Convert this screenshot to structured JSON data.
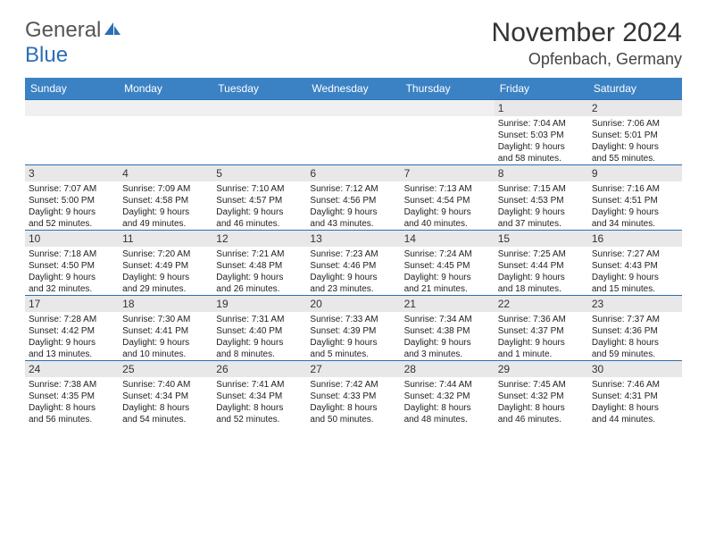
{
  "colors": {
    "header_bg": "#3b82c4",
    "header_text": "#ffffff",
    "cell_border": "#2b6fb5",
    "daynum_bg": "#e8e8e8",
    "text": "#222222",
    "title": "#333333",
    "logo_gray": "#555555",
    "logo_blue": "#2b6fb5"
  },
  "fonts": {
    "title_size": 30,
    "location_size": 18,
    "header_size": 12,
    "daynum_size": 12,
    "body_size": 10
  },
  "logo": {
    "text1": "General",
    "text2": "Blue"
  },
  "title": "November 2024",
  "location": "Opfenbach, Germany",
  "columns": [
    "Sunday",
    "Monday",
    "Tuesday",
    "Wednesday",
    "Thursday",
    "Friday",
    "Saturday"
  ],
  "weeks": [
    [
      null,
      null,
      null,
      null,
      null,
      {
        "n": "1",
        "sr": "Sunrise: 7:04 AM",
        "ss": "Sunset: 5:03 PM",
        "d1": "Daylight: 9 hours",
        "d2": "and 58 minutes."
      },
      {
        "n": "2",
        "sr": "Sunrise: 7:06 AM",
        "ss": "Sunset: 5:01 PM",
        "d1": "Daylight: 9 hours",
        "d2": "and 55 minutes."
      }
    ],
    [
      {
        "n": "3",
        "sr": "Sunrise: 7:07 AM",
        "ss": "Sunset: 5:00 PM",
        "d1": "Daylight: 9 hours",
        "d2": "and 52 minutes."
      },
      {
        "n": "4",
        "sr": "Sunrise: 7:09 AM",
        "ss": "Sunset: 4:58 PM",
        "d1": "Daylight: 9 hours",
        "d2": "and 49 minutes."
      },
      {
        "n": "5",
        "sr": "Sunrise: 7:10 AM",
        "ss": "Sunset: 4:57 PM",
        "d1": "Daylight: 9 hours",
        "d2": "and 46 minutes."
      },
      {
        "n": "6",
        "sr": "Sunrise: 7:12 AM",
        "ss": "Sunset: 4:56 PM",
        "d1": "Daylight: 9 hours",
        "d2": "and 43 minutes."
      },
      {
        "n": "7",
        "sr": "Sunrise: 7:13 AM",
        "ss": "Sunset: 4:54 PM",
        "d1": "Daylight: 9 hours",
        "d2": "and 40 minutes."
      },
      {
        "n": "8",
        "sr": "Sunrise: 7:15 AM",
        "ss": "Sunset: 4:53 PM",
        "d1": "Daylight: 9 hours",
        "d2": "and 37 minutes."
      },
      {
        "n": "9",
        "sr": "Sunrise: 7:16 AM",
        "ss": "Sunset: 4:51 PM",
        "d1": "Daylight: 9 hours",
        "d2": "and 34 minutes."
      }
    ],
    [
      {
        "n": "10",
        "sr": "Sunrise: 7:18 AM",
        "ss": "Sunset: 4:50 PM",
        "d1": "Daylight: 9 hours",
        "d2": "and 32 minutes."
      },
      {
        "n": "11",
        "sr": "Sunrise: 7:20 AM",
        "ss": "Sunset: 4:49 PM",
        "d1": "Daylight: 9 hours",
        "d2": "and 29 minutes."
      },
      {
        "n": "12",
        "sr": "Sunrise: 7:21 AM",
        "ss": "Sunset: 4:48 PM",
        "d1": "Daylight: 9 hours",
        "d2": "and 26 minutes."
      },
      {
        "n": "13",
        "sr": "Sunrise: 7:23 AM",
        "ss": "Sunset: 4:46 PM",
        "d1": "Daylight: 9 hours",
        "d2": "and 23 minutes."
      },
      {
        "n": "14",
        "sr": "Sunrise: 7:24 AM",
        "ss": "Sunset: 4:45 PM",
        "d1": "Daylight: 9 hours",
        "d2": "and 21 minutes."
      },
      {
        "n": "15",
        "sr": "Sunrise: 7:25 AM",
        "ss": "Sunset: 4:44 PM",
        "d1": "Daylight: 9 hours",
        "d2": "and 18 minutes."
      },
      {
        "n": "16",
        "sr": "Sunrise: 7:27 AM",
        "ss": "Sunset: 4:43 PM",
        "d1": "Daylight: 9 hours",
        "d2": "and 15 minutes."
      }
    ],
    [
      {
        "n": "17",
        "sr": "Sunrise: 7:28 AM",
        "ss": "Sunset: 4:42 PM",
        "d1": "Daylight: 9 hours",
        "d2": "and 13 minutes."
      },
      {
        "n": "18",
        "sr": "Sunrise: 7:30 AM",
        "ss": "Sunset: 4:41 PM",
        "d1": "Daylight: 9 hours",
        "d2": "and 10 minutes."
      },
      {
        "n": "19",
        "sr": "Sunrise: 7:31 AM",
        "ss": "Sunset: 4:40 PM",
        "d1": "Daylight: 9 hours",
        "d2": "and 8 minutes."
      },
      {
        "n": "20",
        "sr": "Sunrise: 7:33 AM",
        "ss": "Sunset: 4:39 PM",
        "d1": "Daylight: 9 hours",
        "d2": "and 5 minutes."
      },
      {
        "n": "21",
        "sr": "Sunrise: 7:34 AM",
        "ss": "Sunset: 4:38 PM",
        "d1": "Daylight: 9 hours",
        "d2": "and 3 minutes."
      },
      {
        "n": "22",
        "sr": "Sunrise: 7:36 AM",
        "ss": "Sunset: 4:37 PM",
        "d1": "Daylight: 9 hours",
        "d2": "and 1 minute."
      },
      {
        "n": "23",
        "sr": "Sunrise: 7:37 AM",
        "ss": "Sunset: 4:36 PM",
        "d1": "Daylight: 8 hours",
        "d2": "and 59 minutes."
      }
    ],
    [
      {
        "n": "24",
        "sr": "Sunrise: 7:38 AM",
        "ss": "Sunset: 4:35 PM",
        "d1": "Daylight: 8 hours",
        "d2": "and 56 minutes."
      },
      {
        "n": "25",
        "sr": "Sunrise: 7:40 AM",
        "ss": "Sunset: 4:34 PM",
        "d1": "Daylight: 8 hours",
        "d2": "and 54 minutes."
      },
      {
        "n": "26",
        "sr": "Sunrise: 7:41 AM",
        "ss": "Sunset: 4:34 PM",
        "d1": "Daylight: 8 hours",
        "d2": "and 52 minutes."
      },
      {
        "n": "27",
        "sr": "Sunrise: 7:42 AM",
        "ss": "Sunset: 4:33 PM",
        "d1": "Daylight: 8 hours",
        "d2": "and 50 minutes."
      },
      {
        "n": "28",
        "sr": "Sunrise: 7:44 AM",
        "ss": "Sunset: 4:32 PM",
        "d1": "Daylight: 8 hours",
        "d2": "and 48 minutes."
      },
      {
        "n": "29",
        "sr": "Sunrise: 7:45 AM",
        "ss": "Sunset: 4:32 PM",
        "d1": "Daylight: 8 hours",
        "d2": "and 46 minutes."
      },
      {
        "n": "30",
        "sr": "Sunrise: 7:46 AM",
        "ss": "Sunset: 4:31 PM",
        "d1": "Daylight: 8 hours",
        "d2": "and 44 minutes."
      }
    ]
  ]
}
